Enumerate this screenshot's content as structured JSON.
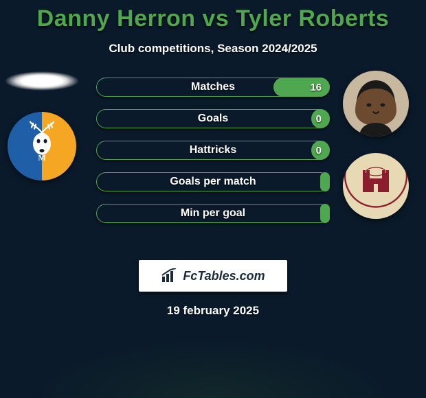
{
  "colors": {
    "background": "#0a1a2a",
    "title": "#4fa84f",
    "text": "#ffffff",
    "bar_border": "#4fa84f",
    "bar_fill": "#4fa84f",
    "logo_bg": "#ffffff",
    "logo_text": "#1a2a3a",
    "badge_left_blue": "#1e5fa8",
    "badge_left_amber": "#f5a623",
    "badge_right_claret": "#8a1d2e",
    "badge_right_cream": "#e8d9b5"
  },
  "title": "Danny Herron vs Tyler Roberts",
  "subtitle": "Club competitions, Season 2024/2025",
  "stats": [
    {
      "label": "Matches",
      "right_value": "16",
      "right_fill_pct": 24
    },
    {
      "label": "Goals",
      "right_value": "0",
      "right_fill_pct": 8
    },
    {
      "label": "Hattricks",
      "right_value": "0",
      "right_fill_pct": 8
    },
    {
      "label": "Goals per match",
      "right_value": "",
      "right_fill_pct": 4
    },
    {
      "label": "Min per goal",
      "right_value": "",
      "right_fill_pct": 4
    }
  ],
  "logo": {
    "text": "FcTables.com"
  },
  "date": "19 february 2025",
  "players": {
    "left": {
      "name": "Danny Herron",
      "club": "Mansfield Town"
    },
    "right": {
      "name": "Tyler Roberts",
      "club": "Northampton Town"
    }
  }
}
